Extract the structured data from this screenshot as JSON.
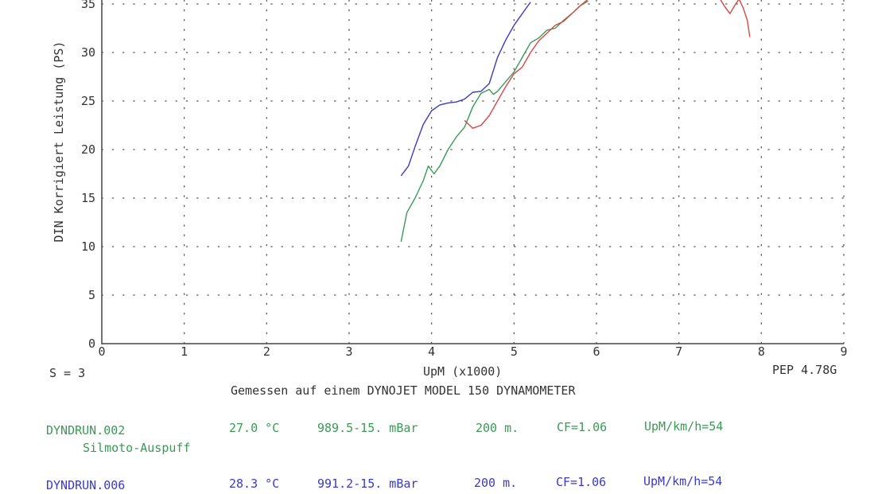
{
  "chart_data": {
    "type": "line",
    "ylabel": "DIN Korrigiert Leistung (PS)",
    "xlabel": "UpM (x1000)",
    "xlim": [
      0,
      9
    ],
    "ylim": [
      0,
      35
    ],
    "x_ticks": [
      "0",
      "1",
      "2",
      "3",
      "4",
      "5",
      "6",
      "7",
      "8",
      "9"
    ],
    "y_ticks": [
      "0",
      "5",
      "10",
      "15",
      "20",
      "25",
      "30",
      "35"
    ],
    "grid": true,
    "series": [
      {
        "color": "#3a3ac8",
        "points": [
          [
            3.63,
            17.3
          ],
          [
            3.72,
            18.3
          ],
          [
            3.8,
            20.3
          ],
          [
            3.9,
            22.6
          ],
          [
            4.0,
            24.0
          ],
          [
            4.1,
            24.6
          ],
          [
            4.2,
            24.8
          ],
          [
            4.3,
            24.9
          ],
          [
            4.4,
            25.2
          ],
          [
            4.5,
            25.9
          ],
          [
            4.6,
            26.0
          ],
          [
            4.7,
            26.8
          ],
          [
            4.8,
            29.5
          ],
          [
            4.9,
            31.3
          ],
          [
            5.0,
            32.8
          ],
          [
            5.1,
            34.0
          ],
          [
            5.2,
            35.2
          ]
        ]
      },
      {
        "color": "#3a9a55",
        "points": [
          [
            3.63,
            10.5
          ],
          [
            3.7,
            13.5
          ],
          [
            3.8,
            15.0
          ],
          [
            3.9,
            16.8
          ],
          [
            3.96,
            18.3
          ],
          [
            4.03,
            17.5
          ],
          [
            4.1,
            18.3
          ],
          [
            4.2,
            20.0
          ],
          [
            4.3,
            21.3
          ],
          [
            4.4,
            22.3
          ],
          [
            4.5,
            24.4
          ],
          [
            4.6,
            25.8
          ],
          [
            4.7,
            26.2
          ],
          [
            4.75,
            25.7
          ],
          [
            4.8,
            26.0
          ],
          [
            4.9,
            27.0
          ],
          [
            5.0,
            28.0
          ],
          [
            5.1,
            29.5
          ],
          [
            5.2,
            31.0
          ],
          [
            5.3,
            31.5
          ],
          [
            5.4,
            32.3
          ],
          [
            5.5,
            32.5
          ],
          [
            5.6,
            33.3
          ],
          [
            5.7,
            34.0
          ],
          [
            5.8,
            34.8
          ],
          [
            5.9,
            35.3
          ]
        ]
      },
      {
        "color": "#d94545",
        "points": [
          [
            4.4,
            23.0
          ],
          [
            4.5,
            22.2
          ],
          [
            4.6,
            22.5
          ],
          [
            4.7,
            23.5
          ],
          [
            4.8,
            25.0
          ],
          [
            4.9,
            26.5
          ],
          [
            5.0,
            27.8
          ],
          [
            5.1,
            28.5
          ],
          [
            5.2,
            30.0
          ],
          [
            5.3,
            31.2
          ],
          [
            5.4,
            32.0
          ],
          [
            5.5,
            32.8
          ],
          [
            5.6,
            33.2
          ],
          [
            5.7,
            34.0
          ],
          [
            5.8,
            34.8
          ],
          [
            5.9,
            35.5
          ],
          [
            7.5,
            35.5
          ],
          [
            7.55,
            34.8
          ],
          [
            7.62,
            34.0
          ],
          [
            7.68,
            34.9
          ],
          [
            7.73,
            35.5
          ],
          [
            7.78,
            34.6
          ],
          [
            7.83,
            33.3
          ],
          [
            7.86,
            31.6
          ]
        ]
      }
    ]
  },
  "footer": {
    "smoothing": "S = 3",
    "xlabel": "UpM (x1000)",
    "version": "PEP 4.78G",
    "measured": "Gemessen auf einem DYNOJET MODEL 150 DYNAMOMETER"
  },
  "runs": [
    {
      "file": "DYNDRUN.002",
      "temp": "27.0 °C",
      "pressure": "989.5-15. mBar",
      "altitude": "200 m.",
      "cf": "CF=1.06",
      "ratio": "UpM/km/h=54",
      "note": "Silmoto-Auspuff"
    },
    {
      "file": "DYNDRUN.006",
      "temp": "28.3 °C",
      "pressure": "991.2-15. mBar",
      "altitude": "200 m.",
      "cf": "CF=1.06",
      "ratio": "UpM/km/h=54"
    }
  ]
}
